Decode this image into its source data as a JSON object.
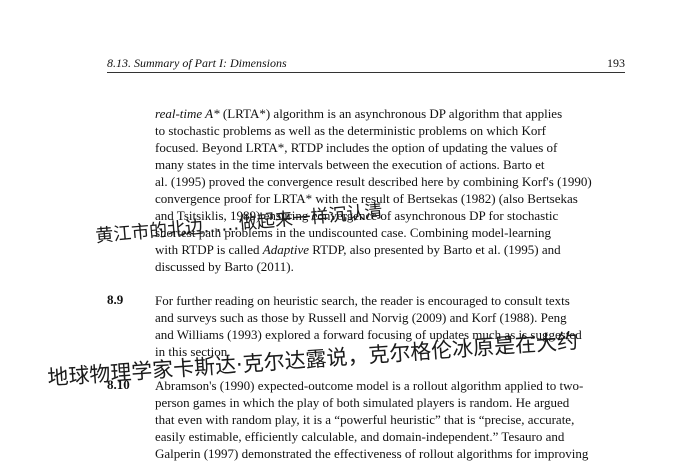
{
  "header": {
    "section": "8.13.  Summary of Part I: Dimensions",
    "page": "193"
  },
  "paragraphs": [
    {
      "number": "",
      "lines": [
        "real-time A* (LRTA*) algorithm is an asynchronous DP algorithm that applies",
        "to stochastic problems as well as the deterministic problems on which Korf",
        "focused. Beyond LRTA*, RTDP includes the option of updating the values of",
        "many states in the time intervals between the execution of actions. Barto et",
        "al. (1995) proved the convergence result described here by combining Korf's (1990)",
        "convergence proof for LRTA* with the result of Bertsekas (1982) (also Bertsekas",
        "and Tsitsiklis, 1989) ensuring convergence of asynchronous DP for stochastic",
        "shortest path problems in the undiscounted case. Combining model-learning",
        "with RTDP is called Adaptive RTDP, also presented by Barto et al. (1995) and",
        "discussed by Barto (2011)."
      ]
    },
    {
      "number": "8.9",
      "lines": [
        "For further reading on heuristic search, the reader is encouraged to consult texts",
        "and surveys such as those by Russell and Norvig (2009) and Korf (1988). Peng",
        "and Williams (1993) explored a forward focusing of updates much as is suggested",
        "in this section."
      ]
    },
    {
      "number": "8.10",
      "lines": [
        "Abramson's (1990) expected-outcome model is a rollout algorithm applied to two-",
        "person games in which the play of both simulated players is random. He argued",
        "that even with random play, it is a “powerful heuristic” that is “precise, accurate,",
        "easily estimable, efficiently calculable, and domain-independent.” Tesauro and",
        "Galperin (1997) demonstrated the effectiveness of rollout algorithms for improving"
      ]
    }
  ],
  "handwriting": [
    "黄江市的北边……做起来一样沉认清",
    "地球物理学家卡斯达·克尔达露说，克尔格伦冰原是在大约"
  ]
}
